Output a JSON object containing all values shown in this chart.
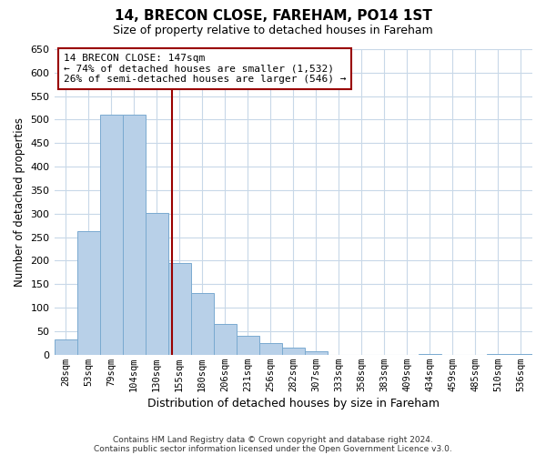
{
  "title": "14, BRECON CLOSE, FAREHAM, PO14 1ST",
  "subtitle": "Size of property relative to detached houses in Fareham",
  "xlabel": "Distribution of detached houses by size in Fareham",
  "ylabel": "Number of detached properties",
  "bar_labels": [
    "28sqm",
    "53sqm",
    "79sqm",
    "104sqm",
    "130sqm",
    "155sqm",
    "180sqm",
    "206sqm",
    "231sqm",
    "256sqm",
    "282sqm",
    "307sqm",
    "333sqm",
    "358sqm",
    "383sqm",
    "409sqm",
    "434sqm",
    "459sqm",
    "485sqm",
    "510sqm",
    "536sqm"
  ],
  "bar_values": [
    33,
    262,
    511,
    511,
    302,
    196,
    131,
    65,
    40,
    24,
    15,
    8,
    0,
    0,
    0,
    0,
    2,
    0,
    0,
    2,
    2
  ],
  "bar_color": "#b8d0e8",
  "bar_edgecolor": "#7aaad0",
  "vline_color": "#990000",
  "annotation_title": "14 BRECON CLOSE: 147sqm",
  "annotation_line1": "← 74% of detached houses are smaller (1,532)",
  "annotation_line2": "26% of semi-detached houses are larger (546) →",
  "annotation_box_edgecolor": "#990000",
  "ylim": [
    0,
    650
  ],
  "yticks": [
    0,
    50,
    100,
    150,
    200,
    250,
    300,
    350,
    400,
    450,
    500,
    550,
    600,
    650
  ],
  "footnote1": "Contains HM Land Registry data © Crown copyright and database right 2024.",
  "footnote2": "Contains public sector information licensed under the Open Government Licence v3.0.",
  "background_color": "#ffffff",
  "grid_color": "#c8d8e8"
}
